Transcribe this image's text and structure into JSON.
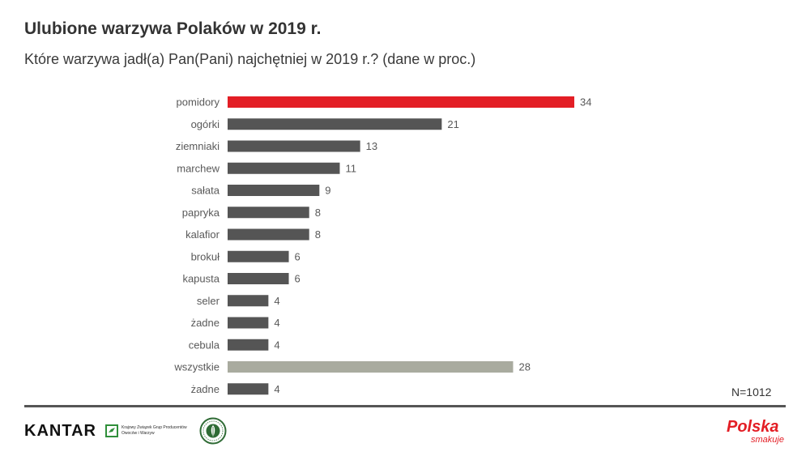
{
  "header": {
    "title": "Ulubione warzywa Polaków w 2019 r.",
    "subtitle": "Które warzywa jadł(a) Pan(Pani) najchętniej w 2019 r.? (dane w proc.)"
  },
  "chart_data": {
    "type": "bar",
    "orientation": "horizontal",
    "title": "Ulubione warzywa Polaków w 2019 r.",
    "subtitle": "Które warzywa jadł(a) Pan(Pani) najchętniej w 2019 r.? (dane w proc.)",
    "categories": [
      "pomidory",
      "ogórki",
      "ziemniaki",
      "marchew",
      "sałata",
      "papryka",
      "kalafior",
      "brokuł",
      "kapusta",
      "seler",
      "żadne",
      "cebula",
      "wszystkie",
      "żadne"
    ],
    "values": [
      34,
      21,
      13,
      11,
      9,
      8,
      8,
      6,
      6,
      4,
      4,
      4,
      28,
      4
    ],
    "bar_colors": [
      "#e31e25",
      "#555555",
      "#555555",
      "#555555",
      "#555555",
      "#555555",
      "#555555",
      "#555555",
      "#555555",
      "#555555",
      "#555555",
      "#555555",
      "#a9ab9f",
      "#555555"
    ],
    "xlim": [
      0,
      34
    ],
    "grid": false,
    "legend": "none",
    "data_labels": true
  },
  "footer": {
    "sample_size": "N=1012",
    "brand_left": "KANTAR",
    "partner_text": "Krajowy Związek Grup Producentów Owoców i Warzyw",
    "brand_right_main": "Polska",
    "brand_right_sub": "smakuje",
    "partner_icon": "kzgp-logo-icon",
    "seal_icon": "ministry-seal-icon"
  }
}
